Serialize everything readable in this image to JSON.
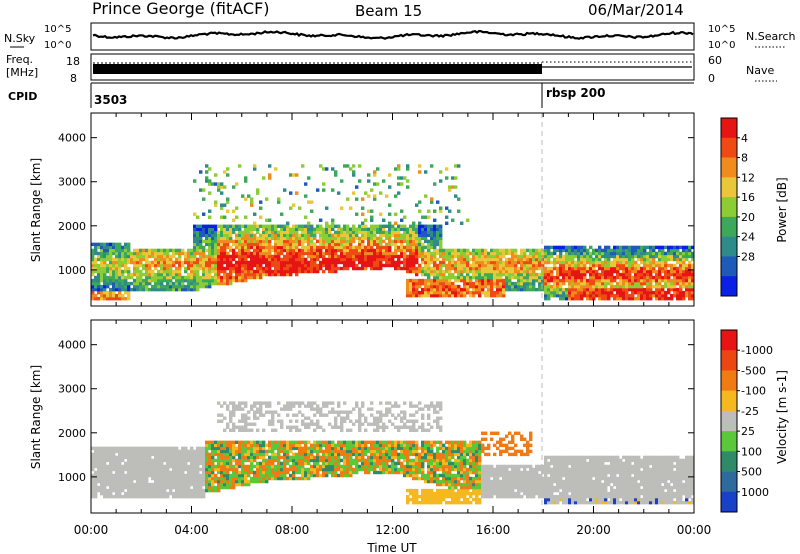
{
  "header": {
    "station": "Prince George (fitACF)",
    "beam": "Beam 15",
    "date": "06/Mar/2014"
  },
  "noise_panel": {
    "left_label": "N.Sky",
    "right_label": "N.Search",
    "left_ticks": [
      "10^5",
      "10^0"
    ],
    "right_ticks": [
      "10^5",
      "10^0"
    ]
  },
  "freq_panel": {
    "left_label_1": "Freq.",
    "left_label_2": "[MHz]",
    "right_label": "Nave",
    "left_ticks": [
      "18",
      "8"
    ],
    "right_ticks": [
      "60",
      "0"
    ]
  },
  "cpid_panel": {
    "label": "CPID",
    "segments": [
      {
        "start_hour": 0.0,
        "name": "3503"
      },
      {
        "start_hour": 18.0,
        "name": "rbsp 200"
      }
    ]
  },
  "chart_data": [
    {
      "type": "heatmap",
      "panel": "power",
      "ylabel": "Slant Range [km]",
      "ylim": [
        180,
        4560
      ],
      "yticks": [
        1000,
        2000,
        3000,
        4000
      ],
      "xlim": [
        0,
        24
      ],
      "colorbar": {
        "label": "Power [dB]",
        "ticks": [
          "4",
          "8",
          "12",
          "16",
          "20",
          "24",
          "28"
        ],
        "colors": [
          "#0a20e6",
          "#1e5ab8",
          "#2f8a8a",
          "#3da85a",
          "#8ccc35",
          "#e8c83a",
          "#f08c1e",
          "#f04a14",
          "#e61414"
        ]
      }
    },
    {
      "type": "heatmap",
      "panel": "velocity",
      "ylabel": "Slant Range [km]",
      "ylim": [
        180,
        4560
      ],
      "yticks": [
        1000,
        2000,
        3000,
        4000
      ],
      "xlim": [
        0,
        24
      ],
      "xlabel": "Time UT",
      "xticks": [
        "00:00",
        "04:00",
        "08:00",
        "12:00",
        "16:00",
        "20:00",
        "00:00"
      ],
      "colorbar": {
        "label": "Velocity [m s-1]",
        "ticks": [
          "1000",
          "500",
          "100",
          "25",
          "-25",
          "-100",
          "-500",
          "-1000"
        ],
        "colors": [
          "#1840c8",
          "#2e6a9e",
          "#2f8a6a",
          "#5ac83a",
          "#bdbdb9",
          "#f5b81e",
          "#f07a14",
          "#ec4612",
          "#e61414"
        ]
      }
    }
  ]
}
